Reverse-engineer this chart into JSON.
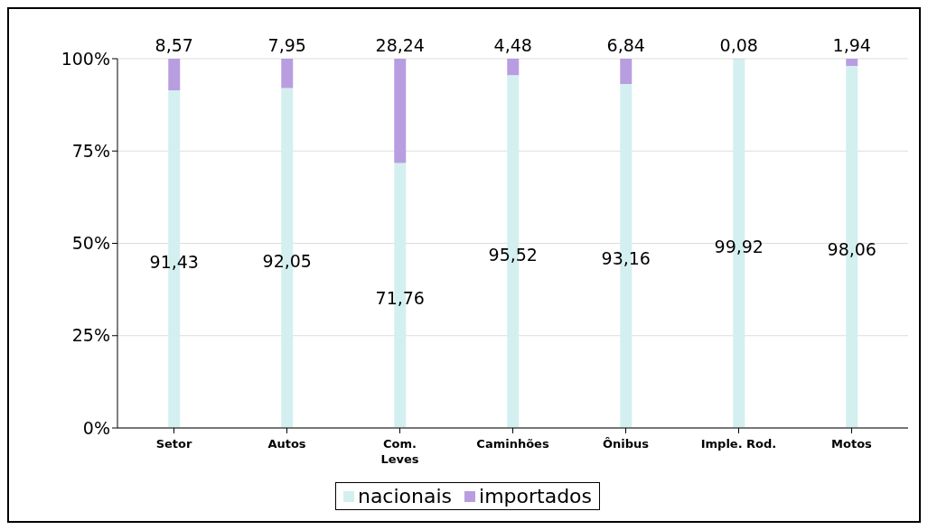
{
  "chart_data": {
    "type": "bar",
    "stacked": true,
    "categories": [
      "Setor",
      "Autos",
      "Com.\nLeves",
      "Caminhões",
      "Ônibus",
      "Imple. Rod.",
      "Motos"
    ],
    "series": [
      {
        "name": "nacionais",
        "color": "#d4efef",
        "values": [
          91.43,
          92.05,
          71.76,
          95.52,
          93.16,
          99.92,
          98.06
        ],
        "value_labels": [
          "91,43",
          "92,05",
          "71,76",
          "95,52",
          "93,16",
          "99,92",
          "98,06"
        ]
      },
      {
        "name": "importados",
        "color": "#b89ee0",
        "values": [
          8.57,
          7.95,
          28.24,
          4.48,
          6.84,
          0.08,
          1.94
        ],
        "value_labels": [
          "8,57",
          "7,95",
          "28,24",
          "4,48",
          "6,84",
          "0,08",
          "1,94"
        ]
      }
    ],
    "ylim": [
      0,
      100
    ],
    "yticks": [
      {
        "value": 0,
        "label": "0%"
      },
      {
        "value": 25,
        "label": "25%"
      },
      {
        "value": 50,
        "label": "50%"
      },
      {
        "value": 75,
        "label": "75%"
      },
      {
        "value": 100,
        "label": "100%"
      }
    ],
    "grid": "y",
    "legend": "bottom"
  }
}
